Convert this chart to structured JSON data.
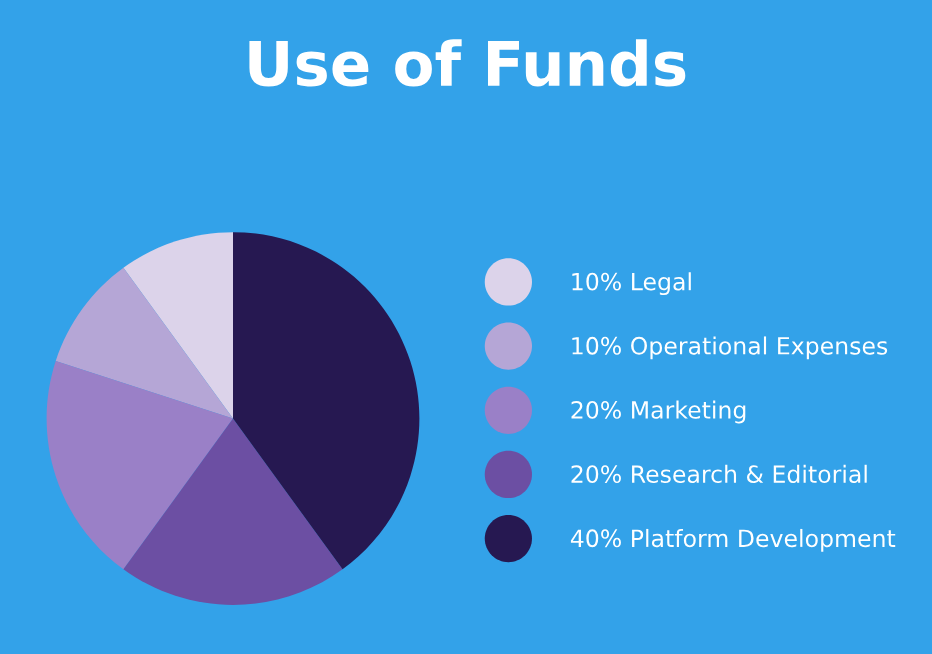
{
  "chart_data": {
    "type": "pie",
    "title": "Use of Funds",
    "categories": [
      "Legal",
      "Operational Expenses",
      "Marketing",
      "Research & Editorial",
      "Platform Development"
    ],
    "values": [
      10,
      10,
      20,
      20,
      40
    ],
    "value_labels": [
      "10%",
      "10%",
      "20%",
      "20%",
      "40%"
    ],
    "colors": [
      "#dcd3ea",
      "#b5a6d6",
      "#9a80c7",
      "#6c4fa3",
      "#261851"
    ],
    "legend": "right"
  }
}
